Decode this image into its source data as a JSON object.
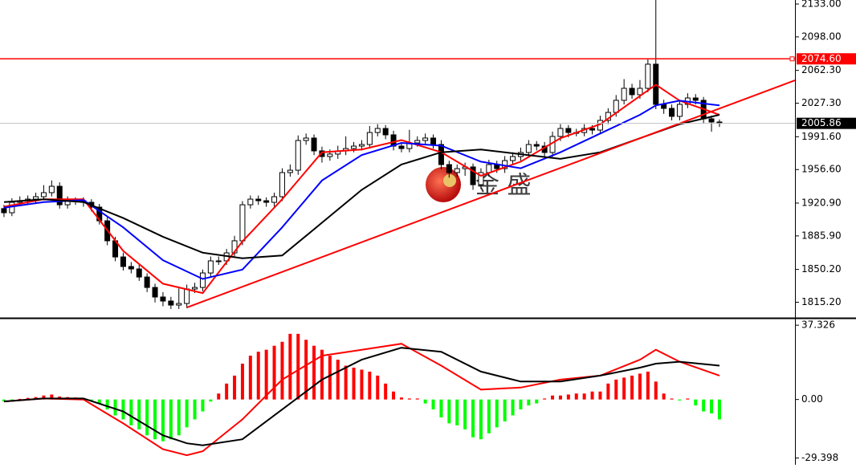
{
  "chart_data": [
    {
      "type": "candlestick",
      "open": [
        1915.0,
        1910.6,
        1921.7,
        1923.4,
        1925.1,
        1927.7,
        1932.0,
        1938.8,
        1919.1,
        1923.4,
        1923.4,
        1921.7,
        1916.6,
        1902.0,
        1880.7,
        1863.5,
        1853.3,
        1850.7,
        1842.1,
        1831.0,
        1820.8,
        1816.5,
        1812.2,
        1813.9,
        1829.3,
        1831.0,
        1846.4,
        1859.3,
        1859.3,
        1867.8,
        1880.7,
        1919.1,
        1925.1,
        1923.4,
        1921.7,
        1927.7,
        1953.4,
        1955.9,
        1987.6,
        1990.2,
        1976.5,
        1970.5,
        1973.1,
        1976.5,
        1979.0,
        1981.6,
        1983.3,
        1996.1,
        2000.4,
        1993.6,
        1981.6,
        1979.0,
        1985.0,
        1987.6,
        1990.2,
        1983.3,
        1961.9,
        1953.4,
        1957.6,
        1959.4,
        1940.5,
        1953.4,
        1961.9,
        1957.6,
        1966.2,
        1970.5,
        1974.8,
        1983.3,
        1981.6,
        1974.8,
        1991.9,
        2000.4,
        1996.1,
        1996.1,
        2000.4,
        1998.7,
        2009.0,
        2017.5,
        2030.4,
        2043.2,
        2036.4,
        2043.2,
        2068.9,
        2026.1,
        2021.8,
        2013.3,
        2026.1,
        2032.9,
        2030.4,
        2010.7,
        2007.3
      ],
      "high": [
        1919,
        1926,
        1928,
        1929,
        1932,
        1940,
        1945,
        1943,
        1928,
        1927,
        1927,
        1925,
        1920,
        1906,
        1885,
        1868,
        1858,
        1855,
        1846,
        1835,
        1826,
        1821,
        1830,
        1834,
        1836,
        1850,
        1864,
        1864,
        1872,
        1886,
        1923,
        1929,
        1929,
        1927,
        1932,
        1958,
        1962,
        1993,
        1995,
        1994,
        1981,
        1978,
        1982,
        1992,
        1986,
        1988,
        2003,
        2005,
        2004,
        1998,
        1986,
        1999,
        1992,
        1995,
        1994,
        1988,
        1966,
        1962,
        1964,
        1963,
        1958,
        1967,
        1966,
        1971,
        1975,
        1980,
        1988,
        1987,
        1986,
        1997,
        2005,
        2004,
        2000,
        2005,
        2004,
        2014,
        2022,
        2036,
        2053,
        2048,
        2052,
        2075,
        2140,
        2031,
        2026,
        2031,
        2038,
        2037,
        2034,
        2014,
        2010
      ],
      "low": [
        1906,
        1907,
        1918,
        1919,
        1921,
        1924,
        1928,
        1915,
        1915,
        1919,
        1917,
        1912,
        1898,
        1876,
        1859,
        1849,
        1846,
        1838,
        1826,
        1815,
        1811,
        1808,
        1808,
        1809,
        1825,
        1827,
        1842,
        1855,
        1855,
        1863,
        1876,
        1915,
        1919,
        1917,
        1917,
        1923,
        1949,
        1951,
        1983,
        1972,
        1964,
        1966,
        1968,
        1972,
        1975,
        1977,
        1979,
        1992,
        1989,
        1977,
        1975,
        1975,
        1981,
        1983,
        1979,
        1957,
        1948,
        1949,
        1950,
        1935,
        1936,
        1949,
        1953,
        1953,
        1962,
        1966,
        1970,
        1977,
        1970,
        1970,
        1987,
        1991,
        1992,
        1992,
        1994,
        1994,
        2005,
        2013,
        2026,
        2032,
        2032,
        2039,
        2021,
        2016,
        2009,
        2009,
        2022,
        2026,
        2006,
        1997,
        2002
      ],
      "close": [
        1910.6,
        1921.7,
        1923.4,
        1925.1,
        1927.7,
        1932.0,
        1938.8,
        1919.1,
        1923.4,
        1923.4,
        1921.7,
        1916.6,
        1902.0,
        1880.7,
        1863.5,
        1853.3,
        1850.7,
        1842.1,
        1831.0,
        1820.8,
        1816.5,
        1812.2,
        1813.9,
        1829.3,
        1831.0,
        1846.4,
        1859.3,
        1859.3,
        1867.8,
        1880.7,
        1919.1,
        1925.1,
        1923.4,
        1921.7,
        1927.7,
        1953.4,
        1955.9,
        1987.6,
        1990.2,
        1976.5,
        1970.5,
        1973.1,
        1976.5,
        1979.0,
        1981.6,
        1983.3,
        1996.1,
        2000.4,
        1993.6,
        1981.6,
        1979.0,
        1985.0,
        1987.6,
        1990.2,
        1983.3,
        1961.9,
        1953.4,
        1957.6,
        1959.4,
        1940.5,
        1953.4,
        1961.9,
        1957.6,
        1966.2,
        1970.5,
        1974.8,
        1983.3,
        1981.6,
        1974.8,
        1991.9,
        2000.4,
        1996.1,
        1996.1,
        2000.4,
        1998.7,
        2009.0,
        2017.5,
        2030.4,
        2043.2,
        2036.4,
        2043.2,
        2068.9,
        2026.1,
        2021.8,
        2013.3,
        2026.1,
        2032.9,
        2030.4,
        2010.7,
        2007.3,
        2005.9
      ],
      "up_color": "#ffffff",
      "down_color": "#000000",
      "xlim": [
        -0.5,
        99.5
      ],
      "ylim": [
        1799.4,
        2137.3
      ],
      "yticks": [
        {
          "value": 2133.0,
          "label": "2133.00"
        },
        {
          "value": 2098.0,
          "label": "2098.00"
        },
        {
          "value": 2062.3,
          "label": "2062.30"
        },
        {
          "value": 2027.3,
          "label": "2027.30"
        },
        {
          "value": 1991.6,
          "label": "1991.60"
        },
        {
          "value": 1956.6,
          "label": "1956.60"
        },
        {
          "value": 1920.9,
          "label": "1920.90"
        },
        {
          "value": 1885.9,
          "label": "1885.90"
        },
        {
          "value": 1850.2,
          "label": "1850.20"
        },
        {
          "value": 1815.2,
          "label": "1815.20"
        }
      ],
      "lines": [
        {
          "color": "#ff0000",
          "x": [
            0,
            5,
            10,
            15,
            20,
            25,
            30,
            35,
            40,
            45,
            50,
            55,
            60,
            65,
            70,
            75,
            80,
            82,
            85,
            90
          ],
          "values": [
            1917,
            1925,
            1925,
            1870,
            1835,
            1825,
            1880,
            1925,
            1975,
            1978,
            1988,
            1975,
            1950,
            1965,
            1990,
            2005,
            2035,
            2047,
            2030,
            2015
          ]
        },
        {
          "color": "#0000ff",
          "x": [
            0,
            5,
            10,
            15,
            20,
            25,
            30,
            35,
            40,
            45,
            50,
            55,
            60,
            65,
            70,
            75,
            80,
            82,
            85,
            90
          ],
          "values": [
            1916,
            1922,
            1924,
            1895,
            1860,
            1840,
            1850,
            1895,
            1945,
            1972,
            1985,
            1982,
            1965,
            1958,
            1975,
            1995,
            2015,
            2025,
            2030,
            2025
          ]
        },
        {
          "color": "#000000",
          "x": [
            0,
            5,
            10,
            15,
            20,
            25,
            30,
            35,
            40,
            45,
            50,
            55,
            60,
            65,
            70,
            75,
            80,
            85,
            90
          ],
          "values": [
            1922,
            1925,
            1922,
            1905,
            1885,
            1868,
            1862,
            1865,
            1900,
            1935,
            1962,
            1975,
            1978,
            1973,
            1968,
            1975,
            1990,
            2005,
            2015
          ]
        }
      ],
      "trendline": {
        "color": "#ff0000",
        "x": [
          23,
          99.5
        ],
        "values": [
          1809.6,
          2051.7
        ]
      },
      "hline": {
        "value": 2074.6,
        "label": "2074.60",
        "color": "#ff0000"
      },
      "last_price": {
        "value": 2005.86,
        "label": "2005.86"
      },
      "watermark": "金 盛"
    },
    {
      "type": "macd",
      "histogram": [
        -1,
        -0.5,
        0.3,
        0.8,
        1.2,
        2,
        2.5,
        1.5,
        1.2,
        1,
        0.5,
        -0.5,
        -2,
        -5,
        -8,
        -10,
        -13,
        -15,
        -18,
        -20,
        -21,
        -20,
        -18,
        -14,
        -10,
        -6,
        -1,
        3,
        8,
        12,
        18,
        22,
        24,
        25,
        27,
        29,
        33,
        33,
        30,
        27,
        25,
        22,
        20,
        17,
        16,
        15,
        14,
        12,
        8,
        4,
        1,
        0.5,
        0.5,
        -2,
        -5,
        -9,
        -12,
        -13,
        -15,
        -19,
        -20,
        -17,
        -14,
        -11,
        -8,
        -5,
        -3,
        -2,
        0.5,
        2,
        2,
        2.5,
        3,
        3,
        4,
        4,
        8,
        10,
        11,
        12,
        13,
        14,
        9,
        3,
        0.5,
        -0.5,
        0.5,
        -3,
        -6,
        -7,
        -10
      ],
      "up_color": "#ff0000",
      "down_color": "#00ff00",
      "xlim": [
        -0.5,
        99.5
      ],
      "ylim": [
        -31.2,
        40.2
      ],
      "yticks": [
        {
          "value": 37.326,
          "label": "37.326"
        },
        {
          "value": 0,
          "label": "0.00"
        },
        {
          "value": -29.398,
          "label": "-29.398"
        }
      ],
      "lines": [
        {
          "color": "#ff0000",
          "x": [
            0,
            5,
            10,
            15,
            20,
            23,
            25,
            30,
            35,
            40,
            45,
            50,
            55,
            60,
            65,
            70,
            75,
            80,
            82,
            85,
            90
          ],
          "values": [
            -1,
            0.5,
            0,
            -12,
            -25,
            -28,
            -26,
            -10,
            10,
            22,
            25,
            28,
            17,
            5,
            6,
            10,
            12,
            20,
            25,
            19,
            12
          ]
        },
        {
          "color": "#000000",
          "x": [
            0,
            5,
            10,
            15,
            20,
            23,
            25,
            30,
            35,
            40,
            45,
            50,
            55,
            60,
            65,
            70,
            75,
            80,
            82,
            85,
            90
          ],
          "values": [
            -1,
            0.5,
            0.5,
            -6,
            -18,
            -22,
            -23,
            -20,
            -5,
            10,
            20,
            26,
            24,
            14,
            9,
            9,
            12,
            16,
            18,
            19,
            17
          ]
        }
      ]
    }
  ]
}
